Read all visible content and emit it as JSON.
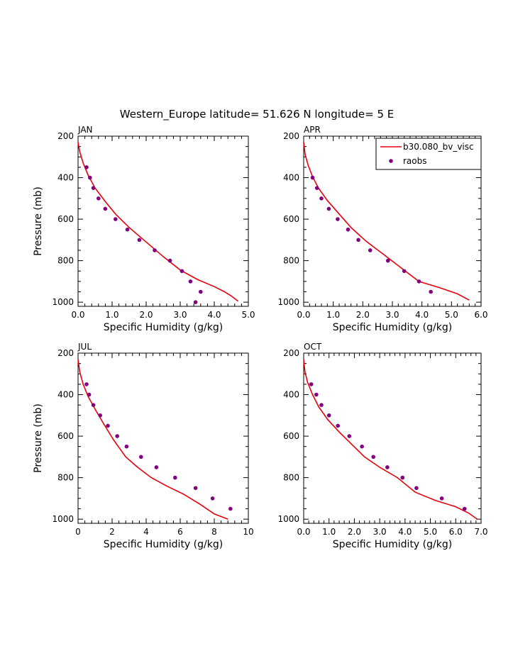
{
  "title": "Western_Europe  latitude= 51.626 N longitude= 5 E",
  "colors": {
    "model": "#e8000b",
    "obs": "#800080",
    "axis": "#000000"
  },
  "legend": {
    "position": "top-right of APR panel",
    "model_label": "b30.080_bv_visc",
    "obs_label": "raobs"
  },
  "panels": [
    {
      "month": "JAN",
      "xlabel": "Specific Humidity (g/kg)",
      "ylabel": "Pressure (mb)"
    },
    {
      "month": "APR",
      "xlabel": "Specific Humidity (g/kg)",
      "ylabel": ""
    },
    {
      "month": "JUL",
      "xlabel": "Specific Humidity (g/kg)",
      "ylabel": "Pressure (mb)"
    },
    {
      "month": "OCT",
      "xlabel": "Specific Humidity (g/kg)",
      "ylabel": ""
    }
  ],
  "chart_data": [
    {
      "type": "line",
      "title": "JAN",
      "xlabel": "Specific Humidity (g/kg)",
      "ylabel": "Pressure (mb)",
      "xlim": [
        0,
        5
      ],
      "ylim": [
        1020,
        200
      ],
      "xticks": [
        "0.0",
        "1.0",
        "2.0",
        "3.0",
        "4.0",
        "5.0"
      ],
      "yticks": [
        "200",
        "400",
        "600",
        "800",
        "1000"
      ],
      "series": [
        {
          "name": "b30.080_bv_visc",
          "kind": "line",
          "x": [
            0.0,
            0.05,
            0.15,
            0.3,
            0.5,
            0.8,
            1.1,
            1.5,
            2.0,
            2.5,
            3.0,
            3.5,
            4.0,
            4.3,
            4.5,
            4.7
          ],
          "y": [
            230,
            275,
            330,
            390,
            450,
            515,
            575,
            640,
            710,
            780,
            845,
            890,
            925,
            950,
            970,
            995
          ]
        },
        {
          "name": "raobs",
          "kind": "scatter",
          "x": [
            0.25,
            0.35,
            0.45,
            0.6,
            0.8,
            1.1,
            1.45,
            1.8,
            2.25,
            2.7,
            3.05,
            3.3,
            3.6,
            3.45
          ],
          "y": [
            350,
            400,
            450,
            500,
            550,
            600,
            650,
            700,
            750,
            800,
            850,
            900,
            950,
            1000
          ]
        }
      ]
    },
    {
      "type": "line",
      "title": "APR",
      "xlabel": "Specific Humidity (g/kg)",
      "ylabel": "",
      "xlim": [
        0,
        6
      ],
      "ylim": [
        1020,
        200
      ],
      "xticks": [
        "0.0",
        "1.0",
        "2.0",
        "3.0",
        "4.0",
        "5.0",
        "6.0"
      ],
      "yticks": [
        "200",
        "400",
        "600",
        "800",
        "1000"
      ],
      "series": [
        {
          "name": "b30.080_bv_visc",
          "kind": "line",
          "x": [
            0.0,
            0.05,
            0.15,
            0.3,
            0.5,
            0.8,
            1.2,
            1.6,
            2.1,
            2.7,
            3.3,
            3.9,
            4.6,
            5.2,
            5.6
          ],
          "y": [
            230,
            290,
            340,
            395,
            450,
            510,
            575,
            640,
            705,
            770,
            835,
            900,
            930,
            960,
            990
          ]
        },
        {
          "name": "raobs",
          "kind": "scatter",
          "x": [
            0.3,
            0.45,
            0.6,
            0.85,
            1.15,
            1.5,
            1.85,
            2.25,
            2.85,
            3.4,
            3.9,
            4.3
          ],
          "y": [
            400,
            450,
            500,
            550,
            600,
            650,
            700,
            750,
            800,
            850,
            900,
            950
          ]
        }
      ]
    },
    {
      "type": "line",
      "title": "JUL",
      "xlabel": "Specific Humidity (g/kg)",
      "ylabel": "Pressure (mb)",
      "xlim": [
        0,
        10
      ],
      "ylim": [
        1020,
        200
      ],
      "xticks": [
        "0",
        "2",
        "4",
        "6",
        "8",
        "10"
      ],
      "yticks": [
        "200",
        "400",
        "600",
        "800",
        "1000"
      ],
      "series": [
        {
          "name": "b30.080_bv_visc",
          "kind": "line",
          "x": [
            0.0,
            0.1,
            0.3,
            0.6,
            1.0,
            1.5,
            2.1,
            2.8,
            3.5,
            4.3,
            5.2,
            6.2,
            7.2,
            8.0,
            8.8
          ],
          "y": [
            230,
            290,
            350,
            410,
            470,
            540,
            620,
            700,
            750,
            800,
            840,
            880,
            930,
            975,
            1000
          ]
        },
        {
          "name": "raobs",
          "kind": "scatter",
          "x": [
            0.5,
            0.65,
            0.9,
            1.3,
            1.75,
            2.3,
            2.85,
            3.7,
            4.6,
            5.7,
            6.9,
            7.9,
            8.95
          ],
          "y": [
            350,
            400,
            450,
            500,
            550,
            600,
            650,
            700,
            750,
            800,
            850,
            900,
            950
          ]
        }
      ]
    },
    {
      "type": "line",
      "title": "OCT",
      "xlabel": "Specific Humidity (g/kg)",
      "ylabel": "",
      "xlim": [
        0,
        7
      ],
      "ylim": [
        1020,
        200
      ],
      "xticks": [
        "0.0",
        "1.0",
        "2.0",
        "3.0",
        "4.0",
        "5.0",
        "6.0",
        "7.0"
      ],
      "yticks": [
        "200",
        "400",
        "600",
        "800",
        "1000"
      ],
      "series": [
        {
          "name": "b30.080_bv_visc",
          "kind": "line",
          "x": [
            0.0,
            0.05,
            0.15,
            0.35,
            0.6,
            0.95,
            1.4,
            1.9,
            2.4,
            3.0,
            3.7,
            4.4,
            5.2,
            6.0,
            6.5,
            6.85
          ],
          "y": [
            230,
            290,
            340,
            400,
            460,
            520,
            580,
            640,
            700,
            750,
            800,
            870,
            910,
            940,
            970,
            1000
          ]
        },
        {
          "name": "raobs",
          "kind": "scatter",
          "x": [
            0.3,
            0.5,
            0.7,
            1.0,
            1.35,
            1.8,
            2.3,
            2.75,
            3.3,
            3.9,
            4.45,
            5.45,
            6.35
          ],
          "y": [
            350,
            400,
            450,
            500,
            550,
            600,
            650,
            700,
            750,
            800,
            850,
            900,
            950
          ]
        }
      ]
    }
  ]
}
